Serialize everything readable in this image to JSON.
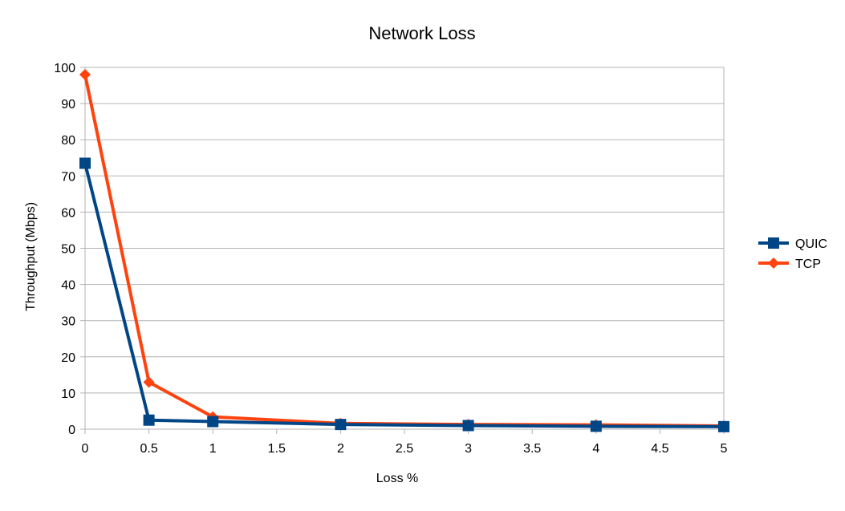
{
  "chart_data": {
    "type": "line",
    "title": "Network Loss",
    "xlabel": "Loss %",
    "ylabel": "Throughput (Mbps)",
    "x": [
      0,
      0.5,
      1,
      2,
      3,
      4,
      5
    ],
    "xlim": [
      0,
      5
    ],
    "ylim": [
      0,
      100
    ],
    "x_ticks": [
      "0",
      "0.5",
      "1",
      "1.5",
      "2",
      "2.5",
      "3",
      "3.5",
      "4",
      "4.5",
      "5"
    ],
    "y_ticks": [
      "0",
      "10",
      "20",
      "30",
      "40",
      "50",
      "60",
      "70",
      "80",
      "90",
      "100"
    ],
    "grid": true,
    "legend_position": "right",
    "series": [
      {
        "name": "QUIC",
        "values": [
          73.5,
          2.5,
          2.1,
          1.3,
          1.0,
          0.8,
          0.7
        ],
        "color": "#004586",
        "marker": "square"
      },
      {
        "name": "TCP",
        "values": [
          98,
          13,
          3.4,
          1.6,
          1.3,
          1.2,
          0.9
        ],
        "color": "#ff420e",
        "marker": "diamond"
      }
    ]
  }
}
